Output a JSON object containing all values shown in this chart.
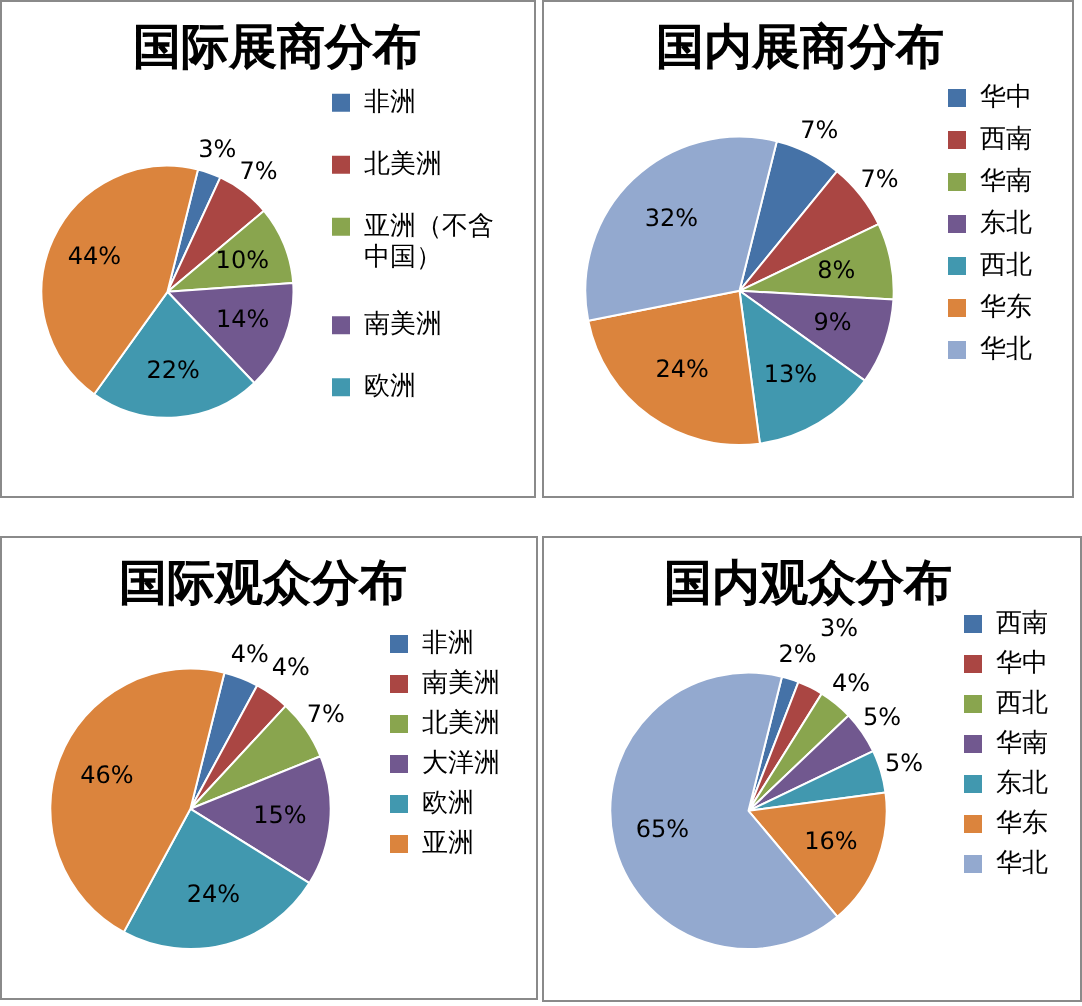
{
  "chart_data": [
    {
      "type": "pie",
      "title": "国际展商分布",
      "categories": [
        "非洲",
        "北美洲",
        "亚洲（不含中国）",
        "南美洲",
        "欧洲",
        null
      ],
      "values": [
        3,
        7,
        10,
        14,
        22,
        44
      ],
      "colors": [
        "#4572a7",
        "#aa4643",
        "#89a54e",
        "#71588f",
        "#4198af",
        "#db843d"
      ],
      "value_labels": [
        "3%",
        "7%",
        "10%",
        "14%",
        "22%",
        "44%"
      ],
      "legend": "right"
    },
    {
      "type": "pie",
      "title": "国内展商分布",
      "categories": [
        "华中",
        "西南",
        "华南",
        "东北",
        "西北",
        "华东",
        "华北"
      ],
      "values": [
        7,
        7,
        8,
        9,
        13,
        24,
        32
      ],
      "colors": [
        "#4572a7",
        "#aa4643",
        "#89a54e",
        "#71588f",
        "#4198af",
        "#db843d",
        "#93a9cf"
      ],
      "value_labels": [
        "7%",
        "7%",
        "8%",
        "9%",
        "13%",
        "24%",
        "32%"
      ],
      "legend": "right"
    },
    {
      "type": "pie",
      "title": "国际观众分布",
      "categories": [
        "非洲",
        "南美洲",
        "北美洲",
        "大洋洲",
        "欧洲",
        "亚洲"
      ],
      "values": [
        4,
        4,
        7,
        15,
        24,
        46
      ],
      "colors": [
        "#4572a7",
        "#aa4643",
        "#89a54e",
        "#71588f",
        "#4198af",
        "#db843d"
      ],
      "value_labels": [
        "4%",
        "4%",
        "7%",
        "15%",
        "24%",
        "46%"
      ],
      "legend": "right"
    },
    {
      "type": "pie",
      "title": "国内观众分布",
      "categories": [
        "西南",
        "华中",
        "西北",
        "华南",
        "东北",
        "华东",
        "华北"
      ],
      "values": [
        2,
        3,
        4,
        5,
        5,
        16,
        65
      ],
      "colors": [
        "#4572a7",
        "#aa4643",
        "#89a54e",
        "#71588f",
        "#4198af",
        "#db843d",
        "#93a9cf"
      ],
      "value_labels": [
        "2%",
        "3%",
        "4%",
        "5%",
        "5%",
        "16%",
        "65%"
      ],
      "legend": "right"
    }
  ]
}
